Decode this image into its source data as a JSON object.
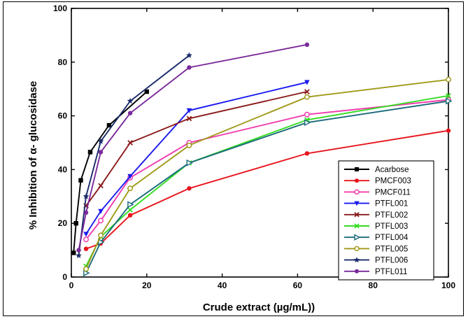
{
  "chart_data": {
    "type": "line",
    "xlabel": "Crude extract (µg/mL))",
    "ylabel": "% Inhibition of α- glucosidase",
    "xlim": [
      0,
      100
    ],
    "ylim": [
      0,
      100
    ],
    "x_ticks": [
      0,
      20,
      40,
      60,
      80,
      100
    ],
    "y_ticks": [
      0,
      20,
      40,
      60,
      80,
      100
    ],
    "grid": false,
    "legend_position": "bottom-right",
    "series": [
      {
        "name": "Acarbose",
        "color": "#000000",
        "marker": "square",
        "x": [
          0.6,
          1.25,
          2.5,
          5,
          10,
          20
        ],
        "y": [
          9,
          20,
          36,
          46.5,
          56.5,
          69
        ]
      },
      {
        "name": "PMCF003",
        "color": "#e8141c",
        "marker": "circle",
        "x": [
          3.9,
          7.8,
          15.6,
          31.25,
          62.5,
          100
        ],
        "y": [
          10.5,
          12.5,
          23,
          33,
          46,
          54.5
        ]
      },
      {
        "name": "PMCF011",
        "color": "#f03cae",
        "marker": "circle-open",
        "x": [
          3.9,
          7.8,
          15.6,
          31.25,
          62.5,
          100
        ],
        "y": [
          14,
          21,
          37,
          50,
          60.5,
          66
        ]
      },
      {
        "name": "PTFL001",
        "color": "#1a1aee",
        "marker": "triangle-down",
        "x": [
          3.9,
          7.8,
          15.6,
          31.25,
          62.5
        ],
        "y": [
          16,
          24.5,
          37.5,
          62,
          72.5
        ]
      },
      {
        "name": "PTFL002",
        "color": "#8b1a1a",
        "marker": "x",
        "x": [
          3.9,
          7.8,
          15.6,
          31.25,
          62.5
        ],
        "y": [
          26.5,
          34,
          50,
          59,
          69
        ]
      },
      {
        "name": "PTFL003",
        "color": "#33dd22",
        "marker": "x",
        "x": [
          3.9,
          7.8,
          15.6,
          31.25,
          62.5,
          100
        ],
        "y": [
          4,
          15,
          25,
          42.5,
          58.5,
          67.5
        ]
      },
      {
        "name": "PTFL004",
        "color": "#1a6a7a",
        "marker": "triangle-right-open",
        "x": [
          3.9,
          7.8,
          15.6,
          31.25,
          62.5,
          100
        ],
        "y": [
          1.5,
          13,
          27,
          42.5,
          57.5,
          65.5
        ]
      },
      {
        "name": "PTFL005",
        "color": "#a09a1a",
        "marker": "circle-open",
        "x": [
          3.9,
          7.8,
          15.6,
          31.25,
          62.5,
          100
        ],
        "y": [
          3,
          15.5,
          33,
          49,
          67,
          73.5
        ]
      },
      {
        "name": "PTFL006",
        "color": "#1a2a6a",
        "marker": "star",
        "x": [
          1.95,
          3.9,
          7.8,
          15.6,
          31.25
        ],
        "y": [
          8,
          30,
          50.5,
          65.5,
          82.5
        ]
      },
      {
        "name": "PTFL011",
        "color": "#7a2a9a",
        "marker": "circle",
        "x": [
          1.95,
          3.9,
          7.8,
          15.6,
          31.25,
          62.5
        ],
        "y": [
          10,
          24,
          46.5,
          61,
          78,
          86.5
        ]
      }
    ]
  }
}
